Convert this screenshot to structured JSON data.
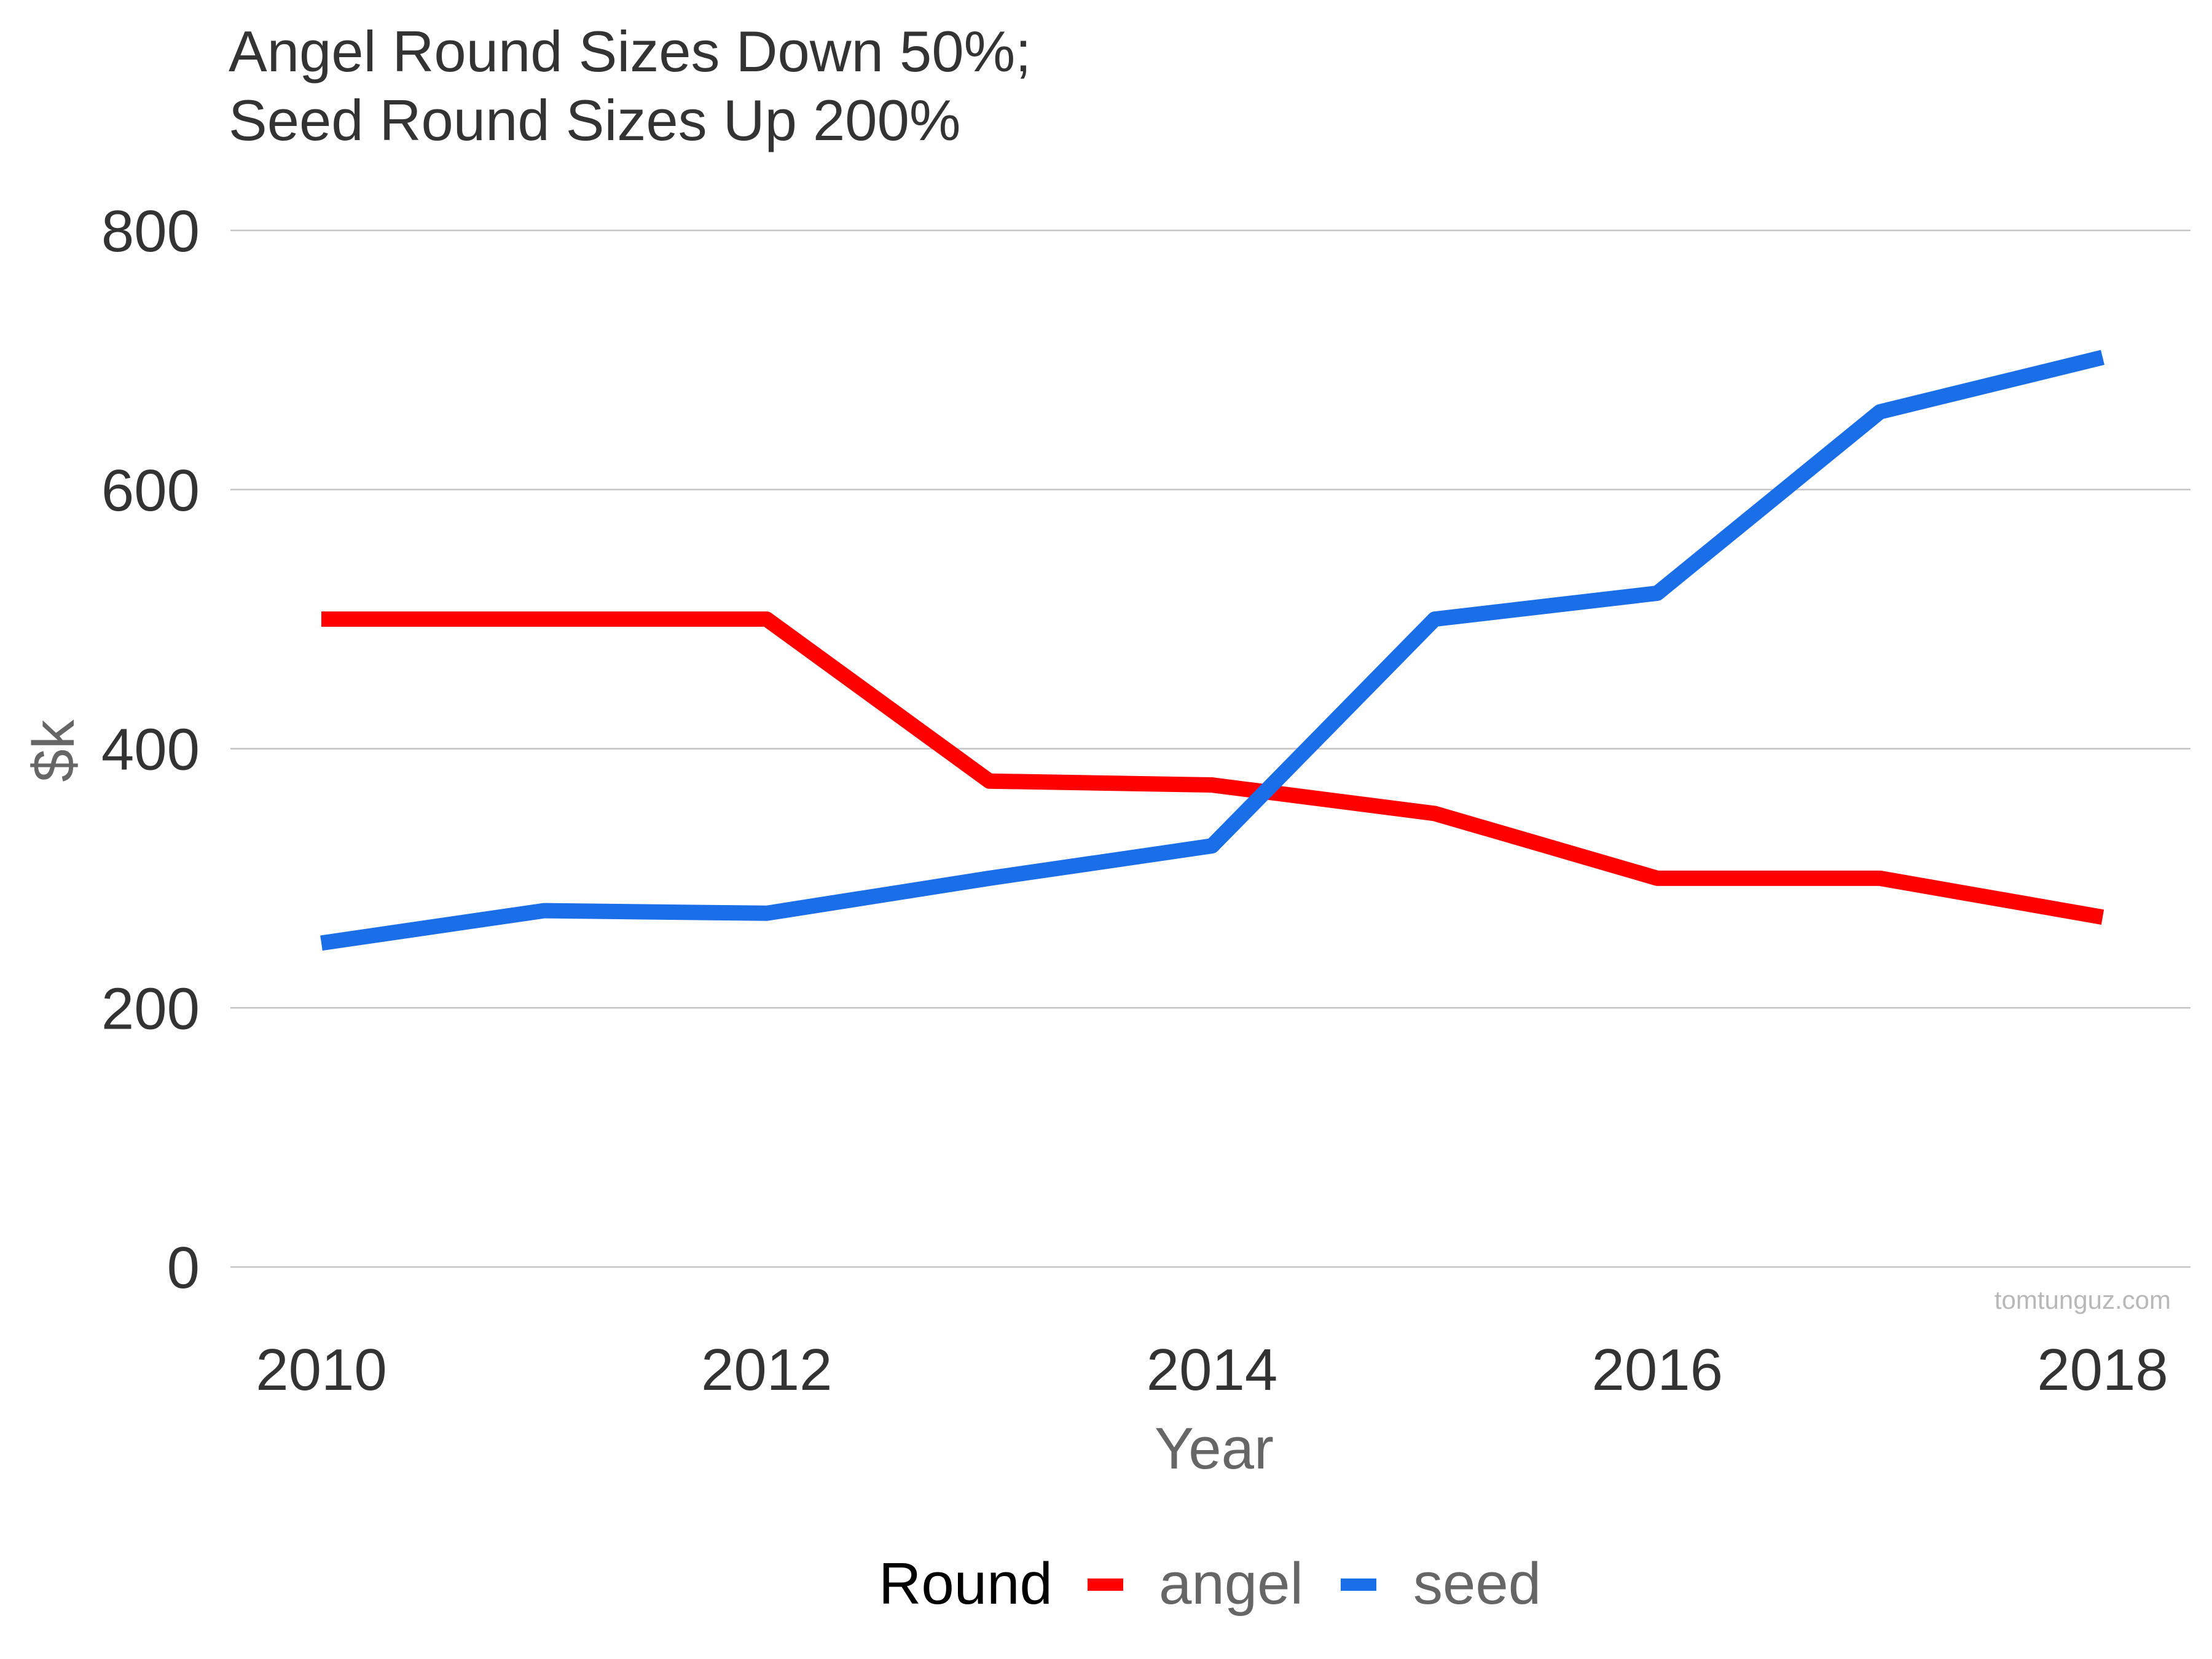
{
  "chart_data": {
    "type": "line",
    "title_lines": [
      "Angel Round Sizes Down 50%;",
      "Seed Round Sizes Up 200%"
    ],
    "xlabel": "Year",
    "ylabel": "$k",
    "x": [
      2010,
      2011,
      2012,
      2013,
      2014,
      2015,
      2016,
      2017,
      2018
    ],
    "xticks": [
      "2010",
      "2012",
      "2014",
      "2016",
      "2018"
    ],
    "xtick_values": [
      2010,
      2012,
      2014,
      2016,
      2018
    ],
    "yticks": [
      "0",
      "200",
      "400",
      "600",
      "800"
    ],
    "ytick_values": [
      0,
      200,
      400,
      600,
      800
    ],
    "xlim": [
      2010,
      2018
    ],
    "ylim": [
      0,
      800
    ],
    "grid": "horizontal",
    "legend_title": "Round",
    "legend_position": "bottom",
    "series": [
      {
        "name": "angel",
        "color": "#ff0000",
        "values": [
          500,
          500,
          500,
          375,
          372,
          350,
          300,
          300,
          270
        ]
      },
      {
        "name": "seed",
        "color": "#1a6ee8",
        "values": [
          250,
          275,
          273,
          300,
          325,
          500,
          520,
          660,
          702
        ]
      }
    ],
    "watermark": "tomtunguz.com"
  }
}
